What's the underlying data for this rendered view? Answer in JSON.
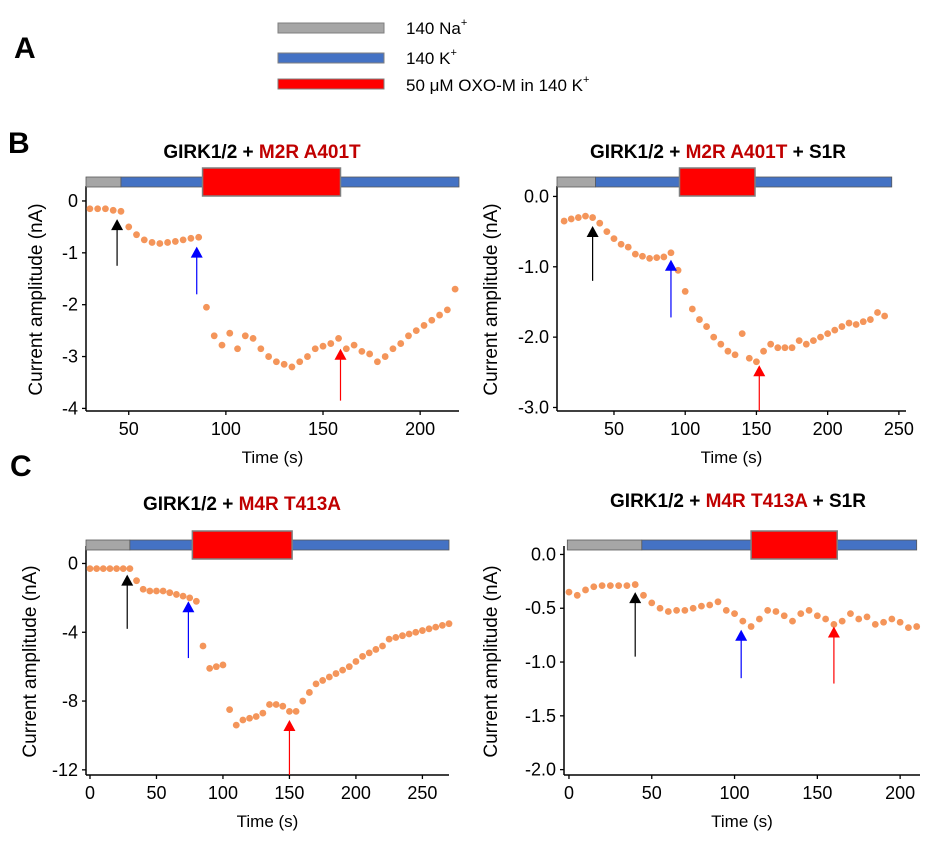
{
  "panel_labels": {
    "a": "A",
    "b": "B",
    "c": "C"
  },
  "legend": [
    {
      "label": "140 Na",
      "sup": "+",
      "color": "#a6a6a6"
    },
    {
      "label": "140 K",
      "sup": "+",
      "color": "#4472c4"
    },
    {
      "label": "50 μM OXO-M in 140 K",
      "sup": "+",
      "color": "#ff0000"
    }
  ],
  "colors": {
    "points": "#f4955a",
    "na_bar": "#a6a6a6",
    "k_bar": "#4472c4",
    "oxo_bar": "#ff0000",
    "title_red": "#c00000",
    "arrow_black": "#000000",
    "arrow_blue": "#0000ff",
    "arrow_red": "#ff0000"
  },
  "chart_data": [
    {
      "type": "scatter",
      "title_parts": [
        {
          "text": "GIRK1/2 + ",
          "color": "#000000"
        },
        {
          "text": "M2R A401T",
          "color": "#c00000"
        }
      ],
      "xlabel": "Time (s)",
      "ylabel": "Current amplitude (nA)",
      "xlim": [
        28,
        220
      ],
      "ylim": [
        -4.05,
        0.25
      ],
      "xticks": [
        {
          "v": 50,
          "label": "50"
        },
        {
          "v": 100,
          "label": "100"
        },
        {
          "v": 150,
          "label": "150"
        },
        {
          "v": 200,
          "label": "200"
        }
      ],
      "yticks": [
        {
          "v": 0,
          "label": "0"
        },
        {
          "v": -1,
          "label": "-1"
        },
        {
          "v": -2,
          "label": "-2"
        },
        {
          "v": -3,
          "label": "-3"
        },
        {
          "v": -4,
          "label": "-4"
        }
      ],
      "bars": [
        {
          "kind": "na",
          "start": 28,
          "end": 46
        },
        {
          "kind": "k",
          "start": 46,
          "end": 220
        },
        {
          "kind": "oxo",
          "start": 88,
          "end": 159
        }
      ],
      "arrows": [
        {
          "kind": "black",
          "x": 44,
          "y_tip": -0.35,
          "y_tail": -1.25
        },
        {
          "kind": "blue",
          "x": 85,
          "y_tip": -0.88,
          "y_tail": -1.8
        },
        {
          "kind": "red",
          "x": 159,
          "y_tip": -2.85,
          "y_tail": -3.85
        }
      ],
      "x": [
        30,
        34,
        38,
        42,
        46,
        50,
        54,
        58,
        62,
        66,
        70,
        74,
        78,
        82,
        86,
        90,
        94,
        98,
        102,
        106,
        110,
        114,
        118,
        122,
        126,
        130,
        134,
        138,
        142,
        146,
        150,
        154,
        158,
        162,
        166,
        170,
        174,
        178,
        182,
        186,
        190,
        194,
        198,
        202,
        206,
        210,
        214,
        218
      ],
      "y": [
        -0.15,
        -0.15,
        -0.15,
        -0.18,
        -0.2,
        -0.5,
        -0.65,
        -0.75,
        -0.8,
        -0.82,
        -0.8,
        -0.78,
        -0.75,
        -0.72,
        -0.7,
        -2.05,
        -2.6,
        -2.78,
        -2.55,
        -2.85,
        -2.6,
        -2.65,
        -2.85,
        -3.0,
        -3.1,
        -3.15,
        -3.2,
        -3.1,
        -3.0,
        -2.85,
        -2.8,
        -2.75,
        -2.65,
        -2.85,
        -2.78,
        -2.9,
        -2.95,
        -3.1,
        -3.0,
        -2.85,
        -2.75,
        -2.6,
        -2.5,
        -2.4,
        -2.3,
        -2.2,
        -2.1,
        -1.7
      ]
    },
    {
      "type": "scatter",
      "title_parts": [
        {
          "text": "GIRK1/2 + ",
          "color": "#000000"
        },
        {
          "text": "M2R A401T",
          "color": "#c00000"
        },
        {
          "text": " + S1R",
          "color": "#000000"
        }
      ],
      "xlabel": "Time (s)",
      "ylabel": "Current amplitude (nA)",
      "xlim": [
        10,
        255
      ],
      "ylim": [
        -3.05,
        0.12
      ],
      "xticks": [
        {
          "v": 50,
          "label": "50"
        },
        {
          "v": 100,
          "label": "100"
        },
        {
          "v": 150,
          "label": "150"
        },
        {
          "v": 200,
          "label": "200"
        },
        {
          "v": 250,
          "label": "250"
        }
      ],
      "yticks": [
        {
          "v": 0,
          "label": "0.0"
        },
        {
          "v": -1,
          "label": "-1.0"
        },
        {
          "v": -2,
          "label": "-2.0"
        },
        {
          "v": -3,
          "label": "-3.0"
        }
      ],
      "bars": [
        {
          "kind": "na",
          "start": 10,
          "end": 37
        },
        {
          "kind": "k",
          "start": 37,
          "end": 245
        },
        {
          "kind": "oxo",
          "start": 96,
          "end": 149
        }
      ],
      "arrows": [
        {
          "kind": "black",
          "x": 35,
          "y_tip": -0.42,
          "y_tail": -1.2
        },
        {
          "kind": "blue",
          "x": 90,
          "y_tip": -0.9,
          "y_tail": -1.72
        },
        {
          "kind": "red",
          "x": 152,
          "y_tip": -2.4,
          "y_tail": -3.05
        }
      ],
      "x": [
        15,
        20,
        25,
        30,
        35,
        40,
        45,
        50,
        55,
        60,
        65,
        70,
        75,
        80,
        85,
        90,
        95,
        100,
        105,
        110,
        115,
        120,
        125,
        130,
        135,
        140,
        145,
        150,
        155,
        160,
        165,
        170,
        175,
        180,
        185,
        190,
        195,
        200,
        205,
        210,
        215,
        220,
        225,
        230,
        235,
        240
      ],
      "y": [
        -0.35,
        -0.32,
        -0.3,
        -0.28,
        -0.3,
        -0.38,
        -0.5,
        -0.6,
        -0.68,
        -0.72,
        -0.82,
        -0.85,
        -0.88,
        -0.87,
        -0.86,
        -0.8,
        -1.05,
        -1.35,
        -1.6,
        -1.75,
        -1.85,
        -2.0,
        -2.1,
        -2.2,
        -2.25,
        -1.95,
        -2.3,
        -2.35,
        -2.2,
        -2.1,
        -2.15,
        -2.15,
        -2.15,
        -2.05,
        -2.1,
        -2.05,
        -2.0,
        -1.95,
        -1.9,
        -1.85,
        -1.8,
        -1.82,
        -1.78,
        -1.75,
        -1.65,
        -1.7
      ]
    },
    {
      "type": "scatter",
      "title_parts": [
        {
          "text": "GIRK1/2 + ",
          "color": "#000000"
        },
        {
          "text": "M4R T413A",
          "color": "#c00000"
        }
      ],
      "xlabel": "Time (s)",
      "ylabel": "Current amplitude (nA)",
      "xlim": [
        -3,
        270
      ],
      "ylim": [
        -12.3,
        0.9
      ],
      "xticks": [
        {
          "v": 0,
          "label": "0"
        },
        {
          "v": 50,
          "label": "50"
        },
        {
          "v": 100,
          "label": "100"
        },
        {
          "v": 150,
          "label": "150"
        },
        {
          "v": 200,
          "label": "200"
        },
        {
          "v": 250,
          "label": "250"
        }
      ],
      "yticks": [
        {
          "v": 0,
          "label": "0"
        },
        {
          "v": -4,
          "label": "-4"
        },
        {
          "v": -8,
          "label": "-8"
        },
        {
          "v": -12,
          "label": "-12"
        }
      ],
      "bars": [
        {
          "kind": "na",
          "start": -3,
          "end": 30
        },
        {
          "kind": "k",
          "start": 30,
          "end": 270
        },
        {
          "kind": "oxo",
          "start": 77,
          "end": 152
        }
      ],
      "arrows": [
        {
          "kind": "black",
          "x": 28,
          "y_tip": -0.65,
          "y_tail": -3.8
        },
        {
          "kind": "blue",
          "x": 74,
          "y_tip": -2.2,
          "y_tail": -5.5
        },
        {
          "kind": "red",
          "x": 150,
          "y_tip": -9.1,
          "y_tail": -12.3
        }
      ],
      "x": [
        0,
        5,
        10,
        15,
        20,
        25,
        30,
        35,
        40,
        45,
        50,
        55,
        60,
        65,
        70,
        75,
        80,
        85,
        90,
        95,
        100,
        105,
        110,
        115,
        120,
        125,
        130,
        135,
        140,
        145,
        150,
        155,
        160,
        165,
        170,
        175,
        180,
        185,
        190,
        195,
        200,
        205,
        210,
        215,
        220,
        225,
        230,
        235,
        240,
        245,
        250,
        255,
        260,
        265,
        270
      ],
      "y": [
        -0.3,
        -0.3,
        -0.3,
        -0.3,
        -0.3,
        -0.3,
        -0.3,
        -1.0,
        -1.5,
        -1.6,
        -1.6,
        -1.6,
        -1.7,
        -1.8,
        -1.9,
        -2.0,
        -2.2,
        -4.8,
        -6.1,
        -6.0,
        -5.9,
        -8.5,
        -9.4,
        -9.1,
        -9.0,
        -8.9,
        -8.7,
        -8.2,
        -8.2,
        -8.3,
        -8.6,
        -8.6,
        -8.0,
        -7.5,
        -7.0,
        -6.8,
        -6.6,
        -6.4,
        -6.2,
        -6.0,
        -5.7,
        -5.4,
        -5.2,
        -5.0,
        -4.8,
        -4.4,
        -4.3,
        -4.2,
        -4.1,
        -4.0,
        -3.9,
        -3.8,
        -3.7,
        -3.6,
        -3.5
      ]
    },
    {
      "type": "scatter",
      "title_parts": [
        {
          "text": "GIRK1/2 + ",
          "color": "#000000"
        },
        {
          "text": "M4R T413A",
          "color": "#c00000"
        },
        {
          "text": " + S1R",
          "color": "#000000"
        }
      ],
      "xlabel": "Time (s)",
      "ylabel": "Current amplitude (nA)",
      "xlim": [
        -3,
        212
      ],
      "ylim": [
        -2.05,
        0.06
      ],
      "xticks": [
        {
          "v": 0,
          "label": "0"
        },
        {
          "v": 50,
          "label": "50"
        },
        {
          "v": 100,
          "label": "100"
        },
        {
          "v": 150,
          "label": "150"
        },
        {
          "v": 200,
          "label": "200"
        }
      ],
      "yticks": [
        {
          "v": 0,
          "label": "0.0"
        },
        {
          "v": -0.5,
          "label": "-0.5"
        },
        {
          "v": -1,
          "label": "-1.0"
        },
        {
          "v": -1.5,
          "label": "-1.5"
        },
        {
          "v": -2,
          "label": "-2.0"
        }
      ],
      "bars": [
        {
          "kind": "na",
          "start": -1,
          "end": 44
        },
        {
          "kind": "k",
          "start": 44,
          "end": 210
        },
        {
          "kind": "oxo",
          "start": 110,
          "end": 162
        }
      ],
      "arrows": [
        {
          "kind": "black",
          "x": 40,
          "y_tip": -0.35,
          "y_tail": -0.95
        },
        {
          "kind": "blue",
          "x": 104,
          "y_tip": -0.7,
          "y_tail": -1.15
        },
        {
          "kind": "red",
          "x": 160,
          "y_tip": -0.67,
          "y_tail": -1.2
        }
      ],
      "x": [
        0,
        5,
        10,
        15,
        20,
        25,
        30,
        35,
        40,
        45,
        50,
        55,
        60,
        65,
        70,
        75,
        80,
        85,
        90,
        95,
        100,
        105,
        110,
        115,
        120,
        125,
        130,
        135,
        140,
        145,
        150,
        155,
        160,
        165,
        170,
        175,
        180,
        185,
        190,
        195,
        200,
        205,
        210
      ],
      "y": [
        -0.35,
        -0.38,
        -0.33,
        -0.3,
        -0.29,
        -0.29,
        -0.29,
        -0.29,
        -0.28,
        -0.38,
        -0.45,
        -0.5,
        -0.53,
        -0.52,
        -0.52,
        -0.5,
        -0.48,
        -0.47,
        -0.44,
        -0.52,
        -0.55,
        -0.62,
        -0.67,
        -0.6,
        -0.52,
        -0.53,
        -0.57,
        -0.62,
        -0.55,
        -0.52,
        -0.57,
        -0.6,
        -0.65,
        -0.62,
        -0.55,
        -0.6,
        -0.58,
        -0.65,
        -0.63,
        -0.6,
        -0.63,
        -0.68,
        -0.67
      ]
    }
  ]
}
